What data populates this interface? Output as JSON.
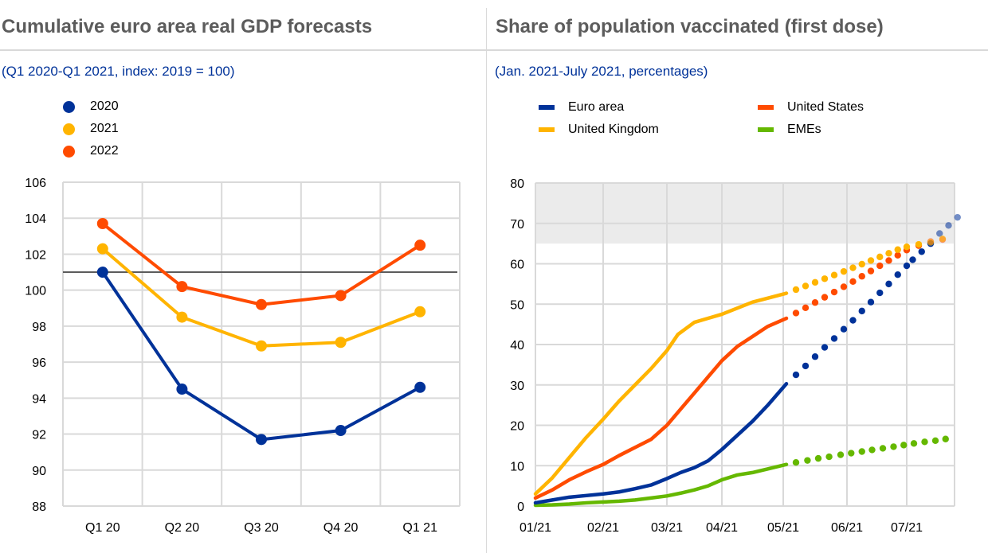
{
  "left_panel": {
    "title": "Cumulative euro area real GDP forecasts",
    "subtitle": "(Q1 2020-Q1 2021, index: 2019 = 100)"
  },
  "right_panel": {
    "title": "Share of population vaccinated (first dose)",
    "subtitle": "(Jan. 2021-July 2021, percentages)"
  },
  "chart_data": [
    {
      "type": "line",
      "title": "Cumulative euro area real GDP forecasts",
      "subtitle": "(Q1 2020-Q1 2021, index: 2019 = 100)",
      "xlabel": "",
      "ylabel": "",
      "categories": [
        "Q1 20",
        "Q2 20",
        "Q3 20",
        "Q4 20",
        "Q1 21"
      ],
      "ylim": [
        88,
        106
      ],
      "yticks": [
        88,
        90,
        92,
        94,
        96,
        98,
        100,
        102,
        104,
        106
      ],
      "grid": true,
      "legend_position": "top-left",
      "reference_line": {
        "value": 101,
        "color": "#5c5c5c"
      },
      "series": [
        {
          "name": "2020",
          "color": "#003299",
          "values": [
            101.0,
            94.5,
            91.7,
            92.2,
            94.6
          ]
        },
        {
          "name": "2021",
          "color": "#ffb400",
          "values": [
            102.3,
            98.5,
            96.9,
            97.1,
            98.8
          ]
        },
        {
          "name": "2022",
          "color": "#ff4b00",
          "values": [
            103.7,
            100.2,
            99.2,
            99.7,
            102.5
          ]
        }
      ]
    },
    {
      "type": "line",
      "title": "Share of population vaccinated (first dose)",
      "subtitle": "(Jan. 2021-July 2021, percentages)",
      "xlabel": "",
      "ylabel": "",
      "x_tick_labels": [
        "01/21",
        "02/21",
        "03/21",
        "04/21",
        "05/21",
        "06/21",
        "07/21"
      ],
      "x_unit": "months since 01/21",
      "xlim": [
        0,
        6.85
      ],
      "ylim": [
        0,
        80
      ],
      "yticks": [
        0,
        10,
        20,
        30,
        40,
        50,
        60,
        70,
        80
      ],
      "grid": true,
      "legend_position": "top",
      "shaded_band": {
        "from": 65,
        "to": 80,
        "color": "#ebebeb"
      },
      "series": [
        {
          "name": "Euro area",
          "color": "#003299",
          "actual": [
            [
              0,
              0.8
            ],
            [
              0.25,
              1.5
            ],
            [
              0.5,
              2.2
            ],
            [
              0.75,
              2.6
            ],
            [
              1,
              3.0
            ],
            [
              1.25,
              3.5
            ],
            [
              1.5,
              4.3
            ],
            [
              1.75,
              5.2
            ],
            [
              2,
              6.8
            ],
            [
              2.25,
              8.3
            ],
            [
              2.5,
              9.5
            ],
            [
              2.75,
              11.2
            ],
            [
              3,
              14.0
            ],
            [
              3.25,
              17.5
            ],
            [
              3.5,
              21.0
            ],
            [
              3.75,
              25.0
            ],
            [
              4.05,
              30.3
            ]
          ],
          "projected": [
            [
              4.2,
              32.5
            ],
            [
              4.35,
              34.7
            ],
            [
              4.5,
              37.0
            ],
            [
              4.65,
              39.3
            ],
            [
              4.8,
              41.5
            ],
            [
              4.95,
              43.8
            ],
            [
              5.1,
              46.0
            ],
            [
              5.25,
              48.3
            ],
            [
              5.4,
              50.5
            ],
            [
              5.55,
              52.8
            ],
            [
              5.7,
              55.0
            ],
            [
              5.85,
              57.3
            ],
            [
              6.0,
              59.5
            ],
            [
              6.1,
              61.0
            ],
            [
              6.25,
              63.0
            ],
            [
              6.4,
              65.0
            ],
            [
              6.55,
              67.5
            ],
            [
              6.7,
              69.5
            ],
            [
              6.85,
              71.5
            ]
          ]
        },
        {
          "name": "United States",
          "color": "#ff4b00",
          "actual": [
            [
              0,
              2.0
            ],
            [
              0.25,
              4.0
            ],
            [
              0.5,
              6.5
            ],
            [
              0.75,
              8.5
            ],
            [
              1,
              10.3
            ],
            [
              1.25,
              12.5
            ],
            [
              1.5,
              14.5
            ],
            [
              1.75,
              16.5
            ],
            [
              2,
              20.0
            ],
            [
              2.25,
              24.0
            ],
            [
              2.5,
              28.0
            ],
            [
              2.75,
              32.0
            ],
            [
              3,
              36.0
            ],
            [
              3.25,
              39.5
            ],
            [
              3.5,
              42.0
            ],
            [
              3.75,
              44.5
            ],
            [
              4.05,
              46.5
            ]
          ],
          "projected": [
            [
              4.2,
              47.8
            ],
            [
              4.35,
              49.1
            ],
            [
              4.5,
              50.4
            ],
            [
              4.65,
              51.7
            ],
            [
              4.8,
              53.0
            ],
            [
              4.95,
              54.3
            ],
            [
              5.1,
              55.6
            ],
            [
              5.25,
              56.9
            ],
            [
              5.4,
              58.2
            ],
            [
              5.55,
              59.5
            ],
            [
              5.7,
              60.8
            ],
            [
              5.85,
              62.1
            ],
            [
              6.0,
              63.4
            ],
            [
              6.2,
              64.5
            ],
            [
              6.4,
              65.5
            ],
            [
              6.6,
              66.0
            ]
          ]
        },
        {
          "name": "United Kingdom",
          "color": "#ffb400",
          "actual": [
            [
              0,
              3.0
            ],
            [
              0.25,
              7.0
            ],
            [
              0.5,
              12.0
            ],
            [
              0.75,
              17.0
            ],
            [
              1,
              21.5
            ],
            [
              1.25,
              26.0
            ],
            [
              1.5,
              30.0
            ],
            [
              1.75,
              34.0
            ],
            [
              2,
              38.5
            ],
            [
              2.2,
              42.5
            ],
            [
              2.5,
              45.5
            ],
            [
              2.75,
              46.5
            ],
            [
              3,
              47.5
            ],
            [
              3.25,
              49.0
            ],
            [
              3.5,
              50.5
            ],
            [
              3.75,
              51.5
            ],
            [
              4.05,
              52.7
            ]
          ],
          "projected": [
            [
              4.2,
              53.6
            ],
            [
              4.35,
              54.5
            ],
            [
              4.5,
              55.4
            ],
            [
              4.65,
              56.3
            ],
            [
              4.8,
              57.2
            ],
            [
              4.95,
              58.1
            ],
            [
              5.1,
              59.0
            ],
            [
              5.25,
              59.9
            ],
            [
              5.4,
              60.8
            ],
            [
              5.55,
              61.7
            ],
            [
              5.7,
              62.6
            ],
            [
              5.85,
              63.5
            ],
            [
              6.0,
              64.2
            ],
            [
              6.2,
              64.8
            ],
            [
              6.4,
              65.3
            ],
            [
              6.6,
              66.2
            ]
          ]
        },
        {
          "name": "EMEs",
          "color": "#65b800",
          "actual": [
            [
              0,
              0.2
            ],
            [
              0.25,
              0.3
            ],
            [
              0.5,
              0.5
            ],
            [
              0.75,
              0.8
            ],
            [
              1,
              1.0
            ],
            [
              1.25,
              1.2
            ],
            [
              1.5,
              1.5
            ],
            [
              1.75,
              2.0
            ],
            [
              2,
              2.5
            ],
            [
              2.25,
              3.2
            ],
            [
              2.5,
              4.0
            ],
            [
              2.75,
              5.0
            ],
            [
              3,
              6.5
            ],
            [
              3.25,
              7.7
            ],
            [
              3.5,
              8.3
            ],
            [
              3.75,
              9.2
            ],
            [
              4.05,
              10.3
            ]
          ],
          "projected": [
            [
              4.2,
              10.8
            ],
            [
              4.38,
              11.3
            ],
            [
              4.55,
              11.8
            ],
            [
              4.72,
              12.2
            ],
            [
              4.9,
              12.7
            ],
            [
              5.07,
              13.1
            ],
            [
              5.25,
              13.5
            ],
            [
              5.42,
              13.9
            ],
            [
              5.6,
              14.3
            ],
            [
              5.78,
              14.7
            ],
            [
              5.95,
              15.1
            ],
            [
              6.12,
              15.5
            ],
            [
              6.3,
              15.9
            ],
            [
              6.48,
              16.2
            ],
            [
              6.65,
              16.6
            ]
          ]
        }
      ]
    }
  ]
}
